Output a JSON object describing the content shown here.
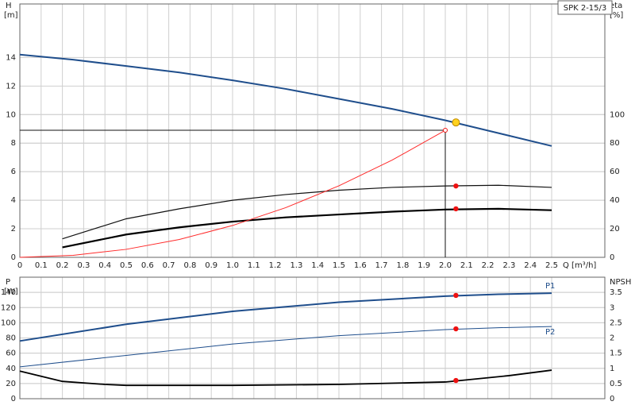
{
  "chart_data": [
    {
      "type": "line",
      "title": "SPK 2-15/3",
      "ylabel": "H",
      "yunit": "[m]",
      "y2label": "eta",
      "y2unit": "[%]",
      "xlabel": "Q [m³/h]",
      "xlim": [
        0,
        2.75
      ],
      "ylim": [
        0,
        17.75
      ],
      "y2lim": [
        0,
        177.5
      ],
      "xticks": [
        0,
        0.1,
        0.2,
        0.3,
        0.4,
        0.5,
        0.6,
        0.7,
        0.8,
        0.9,
        {
          "value": 1,
          "label": "1.0"
        },
        1.1,
        1.2,
        1.3,
        1.4,
        1.5,
        1.6,
        1.7,
        1.8,
        1.9,
        {
          "value": 2,
          "label": "2.0"
        },
        2.1,
        2.2,
        2.3,
        2.4,
        2.5
      ],
      "yticks": [
        0,
        2,
        4,
        6,
        8,
        10,
        12,
        14
      ],
      "y2ticks": [
        0,
        20,
        40,
        60,
        80,
        100
      ],
      "grid": true,
      "duty_point": {
        "x": 2.0,
        "y": 8.9
      },
      "series": [
        {
          "style": "line",
          "color": "#1f4e8c",
          "width": 2,
          "x": [
            0,
            0.25,
            0.5,
            0.75,
            1,
            1.25,
            1.5,
            1.75,
            2,
            2.25,
            2.5
          ],
          "values": [
            14.2,
            13.85,
            13.4,
            12.95,
            12.4,
            11.8,
            11.1,
            10.4,
            9.6,
            8.7,
            7.8
          ]
        },
        {
          "style": "line",
          "axis": "y2",
          "color": "#111111",
          "width": 1.2,
          "x": [
            0.2,
            0.5,
            0.75,
            1,
            1.25,
            1.5,
            1.75,
            2,
            2.25,
            2.5
          ],
          "values": [
            13,
            27,
            34,
            40,
            44,
            47,
            49,
            50,
            50.5,
            49
          ]
        },
        {
          "style": "line",
          "axis": "y2",
          "color": "#000000",
          "width": 2.2,
          "x": [
            0.2,
            0.5,
            0.75,
            1,
            1.25,
            1.5,
            1.75,
            2,
            2.25,
            2.5
          ],
          "values": [
            7,
            16,
            21,
            25,
            28,
            30,
            32,
            33.5,
            34,
            33
          ]
        },
        {
          "style": "line",
          "color": "#ff2a2a",
          "width": 1,
          "x": [
            0,
            0.25,
            0.5,
            0.75,
            1,
            1.25,
            1.5,
            1.75,
            2
          ],
          "values": [
            0,
            0.14,
            0.56,
            1.25,
            2.23,
            3.48,
            5.01,
            6.81,
            8.9
          ]
        },
        {
          "style": "points",
          "color": "#ffd21f",
          "x": [
            2.05
          ],
          "values": [
            9.45
          ]
        },
        {
          "style": "points",
          "axis": "y2",
          "color": "#ee1111",
          "x": [
            2.05,
            2.05
          ],
          "values": [
            50,
            34
          ]
        }
      ]
    },
    {
      "type": "line",
      "ylabel": "P",
      "yunit": "[W]",
      "y2label": "NPSH",
      "xlim": [
        0,
        2.75
      ],
      "ylim": [
        0,
        160
      ],
      "y2lim": [
        0,
        4
      ],
      "yticks": [
        0,
        20,
        40,
        60,
        80,
        100,
        120,
        140
      ],
      "y2ticks": [
        0,
        0.5,
        1,
        1.5,
        2,
        2.5,
        3,
        3.5
      ],
      "grid": true,
      "series": [
        {
          "name": "P1",
          "style": "line",
          "color": "#1f4e8c",
          "width": 2,
          "x": [
            0,
            0.5,
            1,
            1.5,
            2,
            2.25,
            2.5
          ],
          "values": [
            76,
            98,
            115,
            127,
            135,
            137.5,
            139
          ]
        },
        {
          "name": "P2",
          "style": "line",
          "color": "#1f4e8c",
          "width": 1,
          "x": [
            0,
            0.5,
            1,
            1.5,
            2,
            2.25,
            2.5
          ],
          "values": [
            42,
            57,
            72,
            83,
            91,
            93.5,
            95
          ]
        },
        {
          "style": "line",
          "axis": "y2",
          "color": "#000000",
          "width": 1.8,
          "x": [
            0,
            0.2,
            0.4,
            0.5,
            1,
            1.5,
            2,
            2.3,
            2.5
          ],
          "values": [
            0.91,
            0.57,
            0.47,
            0.44,
            0.44,
            0.47,
            0.55,
            0.76,
            0.94
          ]
        },
        {
          "style": "points",
          "color": "#ee1111",
          "x": [
            2.05,
            2.05
          ],
          "values": [
            136,
            92
          ]
        },
        {
          "style": "points",
          "axis": "y2",
          "color": "#ee1111",
          "x": [
            2.05
          ],
          "values": [
            0.6
          ]
        }
      ]
    }
  ]
}
